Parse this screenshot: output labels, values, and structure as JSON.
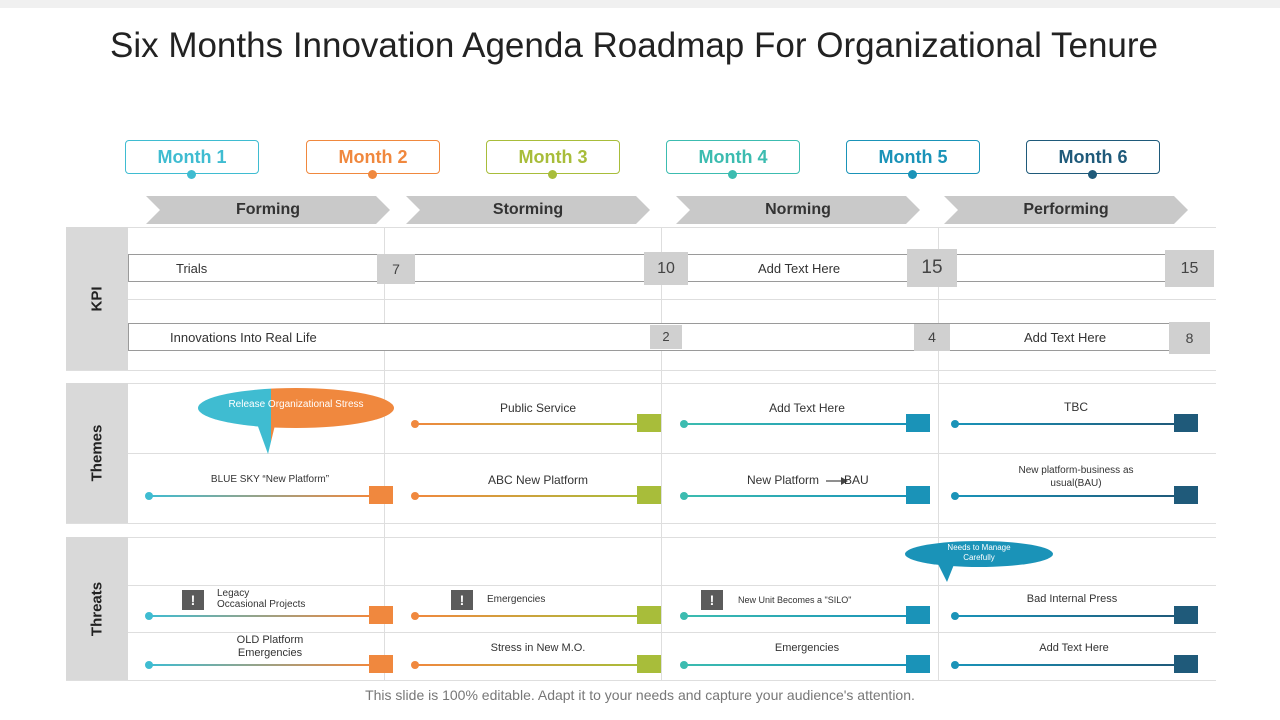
{
  "title": "Six Months Innovation Agenda Roadmap For Organizational Tenure",
  "months": [
    "Month 1",
    "Month 2",
    "Month 3",
    "Month 4",
    "Month 5",
    "Month 6"
  ],
  "phases": [
    "Forming",
    "Storming",
    "Norming",
    "Performing"
  ],
  "sections": {
    "kpi": "KPI",
    "themes": "Themes",
    "threats": "Threats"
  },
  "kpi": {
    "row1": {
      "label1": "Trials",
      "label2": "Add Text Here",
      "values": [
        "7",
        "10",
        "15",
        "15"
      ]
    },
    "row2": {
      "label1": "Innovations  Into Real Life",
      "label2": "Add Text Here",
      "values": [
        "2",
        "4",
        "8"
      ]
    }
  },
  "themes": {
    "callout": "Release Organizational Stress",
    "row1": [
      "Public Service",
      "Add Text Here",
      "TBC"
    ],
    "row2": [
      "BLUE SKY “New Platform”",
      "ABC New Platform",
      "New Platform",
      "BAU",
      "New platform-business as usual(BAU)"
    ]
  },
  "threats": {
    "callout": "Needs to Manage Carefully",
    "warning_glyph": "!",
    "row1": [
      "Legacy",
      "Occasional Projects",
      "Emergencies",
      "New Unit Becomes a \"SILO\"",
      "Bad Internal Press"
    ],
    "row2": [
      "OLD Platform Emergencies",
      "Stress in New M.O.",
      "Emergencies",
      "Add Text Here"
    ]
  },
  "colors": {
    "month1": "#3fbcd1",
    "month2": "#f0883e",
    "month3": "#a8bd3a",
    "month4": "#3cbcb0",
    "month5": "#1a93b8",
    "month6": "#1f5a7a"
  },
  "footer": "This slide is 100% editable. Adapt it to your needs and capture your audience's attention."
}
